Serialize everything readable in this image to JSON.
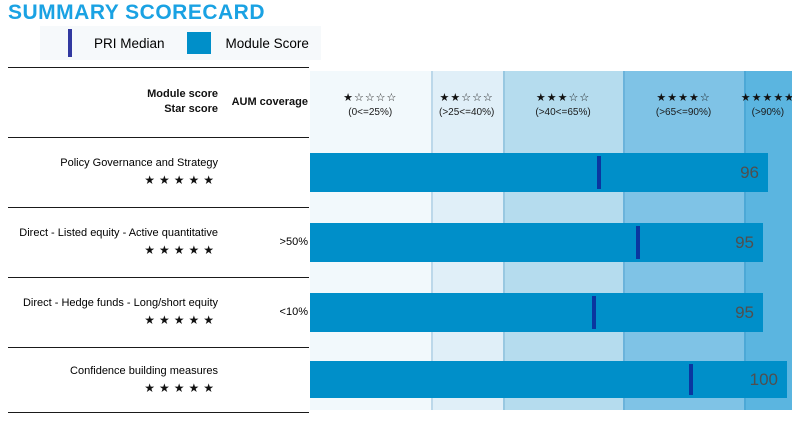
{
  "title": "SUMMARY SCORECARD",
  "legend": {
    "pri_median_label": "PRI Median",
    "module_score_label": "Module Score"
  },
  "header": {
    "col1_line1": "Module score",
    "col1_line2": "Star score",
    "col2": "AUM coverage"
  },
  "star_columns": [
    {
      "filled": 1,
      "range": "(0<=25%)",
      "band_color": "#f2f9fc",
      "width_pct": 25
    },
    {
      "filled": 2,
      "range": "(>25<=40%)",
      "band_color": "#e0eff8",
      "width_pct": 15
    },
    {
      "filled": 3,
      "range": "(>40<=65%)",
      "band_color": "#b5dcee",
      "width_pct": 25
    },
    {
      "filled": 4,
      "range": "(>65<=90%)",
      "band_color": "#7fc3e6",
      "width_pct": 25
    },
    {
      "filled": 5,
      "range": "(>90%)",
      "band_color": "#5bb5e0",
      "width_pct": 10
    }
  ],
  "rows": [
    {
      "module": "Policy Governance and Strategy",
      "stars": 5,
      "aum": "",
      "score": 96,
      "pri_median": 60
    },
    {
      "module": "Direct - Listed equity - Active quantitative",
      "stars": 5,
      "aum": ">50%",
      "score": 95,
      "pri_median": 68
    },
    {
      "module": "Direct - Hedge funds - Long/short equity",
      "stars": 5,
      "aum": "<10%",
      "score": 95,
      "pri_median": 59
    },
    {
      "module": "Confidence building measures",
      "stars": 5,
      "aum": "",
      "score": 100,
      "pri_median": 79
    }
  ],
  "colors": {
    "title": "#1aa2e3",
    "bar": "#008fc9",
    "median_tick": "#0a36a0",
    "legend_line": "#3239a0",
    "score_text": "#4f4f4f"
  },
  "chart_data": {
    "type": "bar",
    "orientation": "horizontal",
    "title": "SUMMARY SCORECARD",
    "categories": [
      "Policy Governance and Strategy",
      "Direct - Listed equity - Active quantitative",
      "Direct - Hedge funds - Long/short equity",
      "Confidence building measures"
    ],
    "series": [
      {
        "name": "Module Score",
        "values": [
          96,
          95,
          95,
          100
        ]
      },
      {
        "name": "PRI Median",
        "values": [
          60,
          68,
          59,
          79
        ]
      }
    ],
    "star_scores": [
      5,
      5,
      5,
      5
    ],
    "aum_coverage": [
      null,
      ">50%",
      "<10%",
      null
    ],
    "xlim": [
      0,
      100
    ],
    "x_bands": [
      {
        "stars": 1,
        "label": "(0<=25%)",
        "from": 0,
        "to": 25
      },
      {
        "stars": 2,
        "label": "(>25<=40%)",
        "from": 25,
        "to": 40
      },
      {
        "stars": 3,
        "label": "(>40<=65%)",
        "from": 40,
        "to": 65
      },
      {
        "stars": 4,
        "label": "(>65<=90%)",
        "from": 65,
        "to": 90
      },
      {
        "stars": 5,
        "label": "(>90%)",
        "from": 90,
        "to": 100
      }
    ],
    "legend_position": "top-left",
    "grid": false
  }
}
